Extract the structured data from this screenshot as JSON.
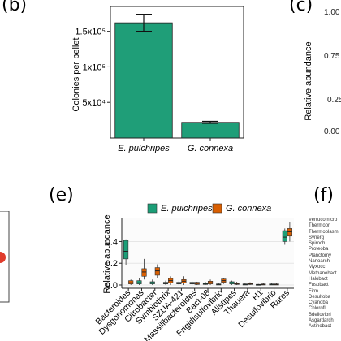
{
  "panels": {
    "b": "(b)",
    "c": "(c)",
    "e": "(e)",
    "f": "(f)"
  },
  "colors": {
    "e_pulchripes": "#1b9e77",
    "g_connexa": "#d95f02",
    "bar_fill": "#1f9e78",
    "edge_marker": "#e03c2c"
  },
  "panel_c_partial": {
    "ylabel": "Relative abundance",
    "ticks": [
      "1.00",
      "0.75",
      "0.5",
      "0.25",
      "0.00"
    ]
  },
  "panel_f_partial": {
    "items": [
      "Verrucomicro",
      "Thermopr",
      "Thermoplasm",
      "Synerg",
      "Spiroch",
      "Proteoba",
      "Planctomy",
      "Nanoarch",
      "Myxocc",
      "Methanobact",
      "Halobact",
      "Fusobact",
      "Firm",
      "Desulfoba",
      "Cyanoba",
      "Chlorofl",
      "Bdellovibri",
      "Asgardarch",
      "Actinobact"
    ]
  },
  "chart_data": [
    {
      "id": "b",
      "type": "bar",
      "categories": [
        "E. pulchripes",
        "G. connexa"
      ],
      "values": [
        162000,
        22000
      ],
      "errors": [
        12000,
        1500
      ],
      "ylabel": "Colonies per pellet",
      "ytick_labels": [
        "1.5x10⁵",
        "1x10⁵",
        "5x10⁴"
      ],
      "ytick_values": [
        150000,
        100000,
        50000
      ],
      "ylim": [
        0,
        185000
      ],
      "legend": "none",
      "grid": false
    },
    {
      "id": "e",
      "type": "box",
      "categories": [
        "Bacteroides",
        "Dysgonomonas",
        "Citrobacter",
        "Symbiothrix",
        "SZUA-421",
        "Massilibacteroides",
        "Bact-08",
        "Frigidisulfovibrio",
        "Alistipes",
        "Thauera",
        "H1",
        "Desulfovibrio",
        "Rares"
      ],
      "ylabel": "Relative abundance",
      "ylim": [
        -0.03,
        0.62
      ],
      "yticks": [
        0.0,
        0.2,
        0.4
      ],
      "ytick_labels": [
        "0.0",
        "0.2",
        "0.4"
      ],
      "legend": "top",
      "grid": true,
      "series": [
        {
          "name": "E. pulchripes",
          "color": "#1b9e77",
          "boxes": [
            {
              "min": 0.18,
              "q1": 0.24,
              "median": 0.31,
              "q3": 0.41,
              "max": 0.42
            },
            {
              "min": 0.0,
              "q1": 0.01,
              "median": 0.02,
              "q3": 0.04,
              "max": 0.06
            },
            {
              "min": 0.0,
              "q1": 0.01,
              "median": 0.02,
              "q3": 0.03,
              "max": 0.05
            },
            {
              "min": 0.0,
              "q1": 0.01,
              "median": 0.015,
              "q3": 0.025,
              "max": 0.04
            },
            {
              "min": 0.0,
              "q1": 0.01,
              "median": 0.015,
              "q3": 0.025,
              "max": 0.04
            },
            {
              "min": 0.0,
              "q1": 0.01,
              "median": 0.015,
              "q3": 0.025,
              "max": 0.035
            },
            {
              "min": 0.0,
              "q1": 0.005,
              "median": 0.01,
              "q3": 0.02,
              "max": 0.03
            },
            {
              "min": 0.0,
              "q1": 0.0,
              "median": 0.005,
              "q3": 0.01,
              "max": 0.015
            },
            {
              "min": 0.0,
              "q1": 0.01,
              "median": 0.02,
              "q3": 0.03,
              "max": 0.04
            },
            {
              "min": 0.0,
              "q1": 0.0,
              "median": 0.005,
              "q3": 0.01,
              "max": 0.02
            },
            {
              "min": 0.0,
              "q1": 0.0,
              "median": 0.003,
              "q3": 0.006,
              "max": 0.01
            },
            {
              "min": 0.0,
              "q1": 0.0,
              "median": 0.005,
              "q3": 0.01,
              "max": 0.015
            },
            {
              "min": 0.37,
              "q1": 0.4,
              "median": 0.44,
              "q3": 0.5,
              "max": 0.52
            }
          ]
        },
        {
          "name": "G. connexa",
          "color": "#d95f02",
          "boxes": [
            {
              "min": 0.0,
              "q1": 0.01,
              "median": 0.02,
              "q3": 0.04,
              "max": 0.05
            },
            {
              "min": 0.05,
              "q1": 0.08,
              "median": 0.12,
              "q3": 0.15,
              "max": 0.24
            },
            {
              "min": 0.06,
              "q1": 0.09,
              "median": 0.13,
              "q3": 0.16,
              "max": 0.19
            },
            {
              "min": 0.0,
              "q1": 0.02,
              "median": 0.04,
              "q3": 0.06,
              "max": 0.08
            },
            {
              "min": 0.0,
              "q1": 0.02,
              "median": 0.035,
              "q3": 0.05,
              "max": 0.08
            },
            {
              "min": 0.0,
              "q1": 0.005,
              "median": 0.015,
              "q3": 0.025,
              "max": 0.03
            },
            {
              "min": 0.0,
              "q1": 0.01,
              "median": 0.02,
              "q3": 0.035,
              "max": 0.05
            },
            {
              "min": 0.01,
              "q1": 0.025,
              "median": 0.04,
              "q3": 0.055,
              "max": 0.065
            },
            {
              "min": 0.0,
              "q1": 0.005,
              "median": 0.01,
              "q3": 0.02,
              "max": 0.03
            },
            {
              "min": 0.0,
              "q1": 0.005,
              "median": 0.01,
              "q3": 0.02,
              "max": 0.025
            },
            {
              "min": 0.0,
              "q1": 0.0,
              "median": 0.005,
              "q3": 0.01,
              "max": 0.015
            },
            {
              "min": 0.0,
              "q1": 0.0,
              "median": 0.005,
              "q3": 0.01,
              "max": 0.015
            },
            {
              "min": 0.4,
              "q1": 0.45,
              "median": 0.49,
              "q3": 0.52,
              "max": 0.58
            }
          ]
        }
      ]
    }
  ]
}
